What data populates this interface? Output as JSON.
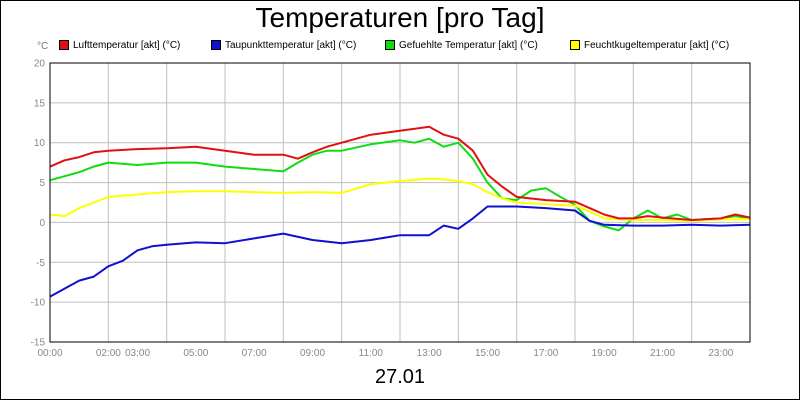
{
  "chart_data": {
    "type": "line",
    "title": "Temperaturen [pro Tag]",
    "xlabel": "27.01",
    "ylabel": "°C",
    "ylim": [
      -15,
      20
    ],
    "yticks": [
      20,
      15,
      10,
      5,
      0,
      -5,
      -10,
      -15
    ],
    "xlim": [
      0,
      24
    ],
    "xticks": [
      {
        "h": 0,
        "label": "00:00"
      },
      {
        "h": 2,
        "label": "02:00"
      },
      {
        "h": 3,
        "label": "03:00"
      },
      {
        "h": 5,
        "label": "05:00"
      },
      {
        "h": 7,
        "label": "07:00"
      },
      {
        "h": 9,
        "label": "09:00"
      },
      {
        "h": 11,
        "label": "11:00"
      },
      {
        "h": 13,
        "label": "13:00"
      },
      {
        "h": 15,
        "label": "15:00"
      },
      {
        "h": 17,
        "label": "17:00"
      },
      {
        "h": 19,
        "label": "19:00"
      },
      {
        "h": 21,
        "label": "21:00"
      },
      {
        "h": 23,
        "label": "23:00"
      }
    ],
    "grid": true,
    "series": [
      {
        "name": "Lufttemperatur [akt] (°C)",
        "color": "#e01010",
        "x": [
          0,
          0.5,
          1,
          1.5,
          2,
          3,
          4,
          5,
          6,
          7,
          8,
          8.5,
          9,
          9.5,
          10,
          11,
          12,
          13,
          13.5,
          14,
          14.5,
          15,
          15.5,
          16,
          17,
          18,
          18.5,
          19,
          19.5,
          20,
          20.5,
          21,
          22,
          23,
          23.5,
          24
        ],
        "values": [
          7,
          7.8,
          8.2,
          8.8,
          9,
          9.2,
          9.3,
          9.5,
          9,
          8.5,
          8.5,
          8,
          8.8,
          9.5,
          10,
          11,
          11.5,
          12,
          11,
          10.5,
          9,
          6,
          4.5,
          3.2,
          2.8,
          2.6,
          1.8,
          1,
          0.5,
          0.5,
          0.8,
          0.6,
          0.3,
          0.5,
          1,
          0.6
        ]
      },
      {
        "name": "Taupunkttemperatur [akt] (°C)",
        "color": "#1010d0",
        "x": [
          0,
          0.5,
          1,
          1.5,
          2,
          2.5,
          3,
          3.5,
          4,
          5,
          6,
          7,
          8,
          9,
          10,
          11,
          12,
          13,
          13.5,
          14,
          14.5,
          15,
          15.5,
          16,
          17,
          18,
          18.5,
          19,
          20,
          21,
          22,
          23,
          24
        ],
        "values": [
          -9.3,
          -8.3,
          -7.3,
          -6.8,
          -5.5,
          -4.8,
          -3.5,
          -3,
          -2.8,
          -2.5,
          -2.6,
          -2,
          -1.4,
          -2.2,
          -2.6,
          -2.2,
          -1.6,
          -1.6,
          -0.4,
          -0.8,
          0.5,
          2,
          2,
          2,
          1.8,
          1.5,
          0.2,
          -0.3,
          -0.4,
          -0.4,
          -0.3,
          -0.4,
          -0.3
        ]
      },
      {
        "name": "Gefuehlte Temperatur [akt] (°C)",
        "color": "#10dd10",
        "x": [
          0,
          0.5,
          1,
          1.5,
          2,
          3,
          4,
          5,
          6,
          7,
          8,
          8.5,
          9,
          9.5,
          10,
          11,
          12,
          12.5,
          13,
          13.5,
          14,
          14.5,
          15,
          15.5,
          16,
          16.5,
          17,
          17.5,
          18,
          18.5,
          19,
          19.5,
          20,
          20.5,
          21,
          21.5,
          22,
          23,
          23.5,
          24
        ],
        "values": [
          5.3,
          5.8,
          6.3,
          7,
          7.5,
          7.2,
          7.5,
          7.5,
          7,
          6.7,
          6.4,
          7.5,
          8.5,
          9,
          9,
          9.8,
          10.3,
          10,
          10.5,
          9.5,
          10,
          8,
          5,
          3,
          2.8,
          4,
          4.3,
          3.2,
          2.2,
          0.2,
          -0.5,
          -1,
          0.5,
          1.5,
          0.5,
          1,
          0.3,
          0.5,
          0.8,
          0.5
        ]
      },
      {
        "name": "Feuchtkugeltemperatur [akt] (°C)",
        "color": "#ffff00",
        "x": [
          0,
          0.5,
          1,
          1.5,
          2,
          3,
          4,
          5,
          6,
          7,
          8,
          9,
          10,
          11,
          12,
          13,
          13.5,
          14,
          14.5,
          15,
          15.5,
          16,
          17,
          18,
          18.5,
          19,
          20,
          21,
          22,
          23,
          24
        ],
        "values": [
          1,
          0.8,
          1.8,
          2.5,
          3.2,
          3.5,
          3.8,
          3.9,
          3.9,
          3.8,
          3.7,
          3.8,
          3.7,
          4.8,
          5.2,
          5.5,
          5.4,
          5.2,
          4.8,
          3.8,
          3,
          2.5,
          2.3,
          2.1,
          1.4,
          0.5,
          0.3,
          0.3,
          0.2,
          0.4,
          0.4
        ]
      }
    ]
  }
}
